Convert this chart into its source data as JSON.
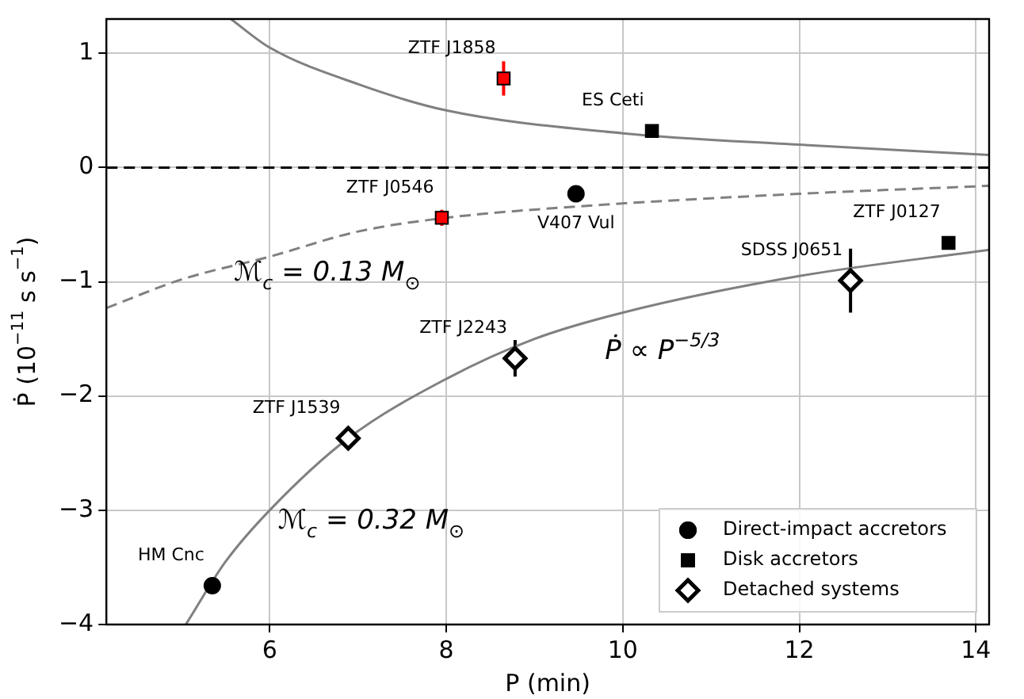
{
  "chart_data": {
    "type": "scatter",
    "xlabel": "P (min)",
    "ylabel": "Ṗ (10$^{−11}$ s s$^{−1}$)",
    "xlim": [
      4.15,
      14.15
    ],
    "xticks": [
      6,
      8,
      10,
      12,
      14
    ],
    "ylim": [
      -4,
      1.3
    ],
    "yticks": [
      -4,
      -3,
      -2,
      -1,
      0,
      1
    ],
    "grid": true,
    "legend": "bottom right",
    "ref_lines": [
      {
        "axis": "y",
        "value": 0,
        "color": "#000000",
        "line_style": "dashed"
      }
    ],
    "series": [
      {
        "name": "Direct-impact accretors",
        "type": "scatter",
        "marker": "circle",
        "color": "#000000",
        "x": [
          5.35,
          9.47
        ],
        "values": [
          -3.66,
          -0.23
        ]
      },
      {
        "name": "Disk accretors",
        "type": "scatter",
        "marker": "square",
        "color": "#000000",
        "colors": [
          "#ff0000",
          "#ff0000",
          "#000000",
          "#000000"
        ],
        "x": [
          8.65,
          7.95,
          10.33,
          13.69
        ],
        "values": [
          0.78,
          -0.44,
          0.32,
          -0.66
        ],
        "errors": [
          0.15,
          0.07,
          null,
          null
        ]
      },
      {
        "name": "Detached systems",
        "type": "scatter",
        "marker": "diamond",
        "color": "#000000",
        "x": [
          12.58,
          8.78,
          6.89
        ],
        "values": [
          -0.99,
          -1.67,
          -2.37
        ],
        "errors": [
          0.28,
          0.16,
          null
        ]
      },
      {
        "type": "line",
        "color": "#808080",
        "line_style": "solid",
        "x": [
          5.56,
          6,
          7,
          8,
          10,
          12,
          14.15
        ],
        "values": [
          1.3,
          1.05,
          0.73,
          0.5,
          0.3,
          0.2,
          0.11
        ]
      },
      {
        "type": "line",
        "color": "#808080",
        "line_style": "dashed",
        "x": [
          4.15,
          5,
          6,
          7,
          8,
          9.5,
          12,
          14.15
        ],
        "values": [
          -1.23,
          -0.98,
          -0.78,
          -0.56,
          -0.44,
          -0.34,
          -0.23,
          -0.16
        ]
      },
      {
        "type": "line",
        "color": "#808080",
        "line_style": "solid",
        "x": [
          5.05,
          5.5,
          6,
          6.89,
          8,
          9,
          10,
          12,
          14.15
        ],
        "values": [
          -4,
          -3.45,
          -3,
          -2.37,
          -1.85,
          -1.5,
          -1.27,
          -0.95,
          -0.72
        ]
      }
    ],
    "annotations": [
      {
        "text": "ZTF J1858",
        "x": 8.65,
        "y": 0.78
      },
      {
        "text": "ES Ceti",
        "x": 10.33,
        "y": 0.32
      },
      {
        "text": "ZTF J0546",
        "x": 7.95,
        "y": -0.44
      },
      {
        "text": "V407 Vul",
        "x": 9.47,
        "y": -0.23
      },
      {
        "text": "ZTF J0127",
        "x": 13.69,
        "y": -0.66
      },
      {
        "text": "SDSS J0651",
        "x": 12.58,
        "y": -0.99
      },
      {
        "text": "ZTF J2243",
        "x": 8.78,
        "y": -1.67
      },
      {
        "text": "ZTF J1539",
        "x": 6.89,
        "y": -2.37
      },
      {
        "text": "HM Cnc",
        "x": 5.35,
        "y": -3.66
      },
      "ℳ$_{c}$ = 0.13 M$_{⊙}$",
      "ℳ$_{c}$ = 0.32 M$_{⊙}$",
      "Ṗ ∝ P$^{−5/3}$"
    ]
  }
}
